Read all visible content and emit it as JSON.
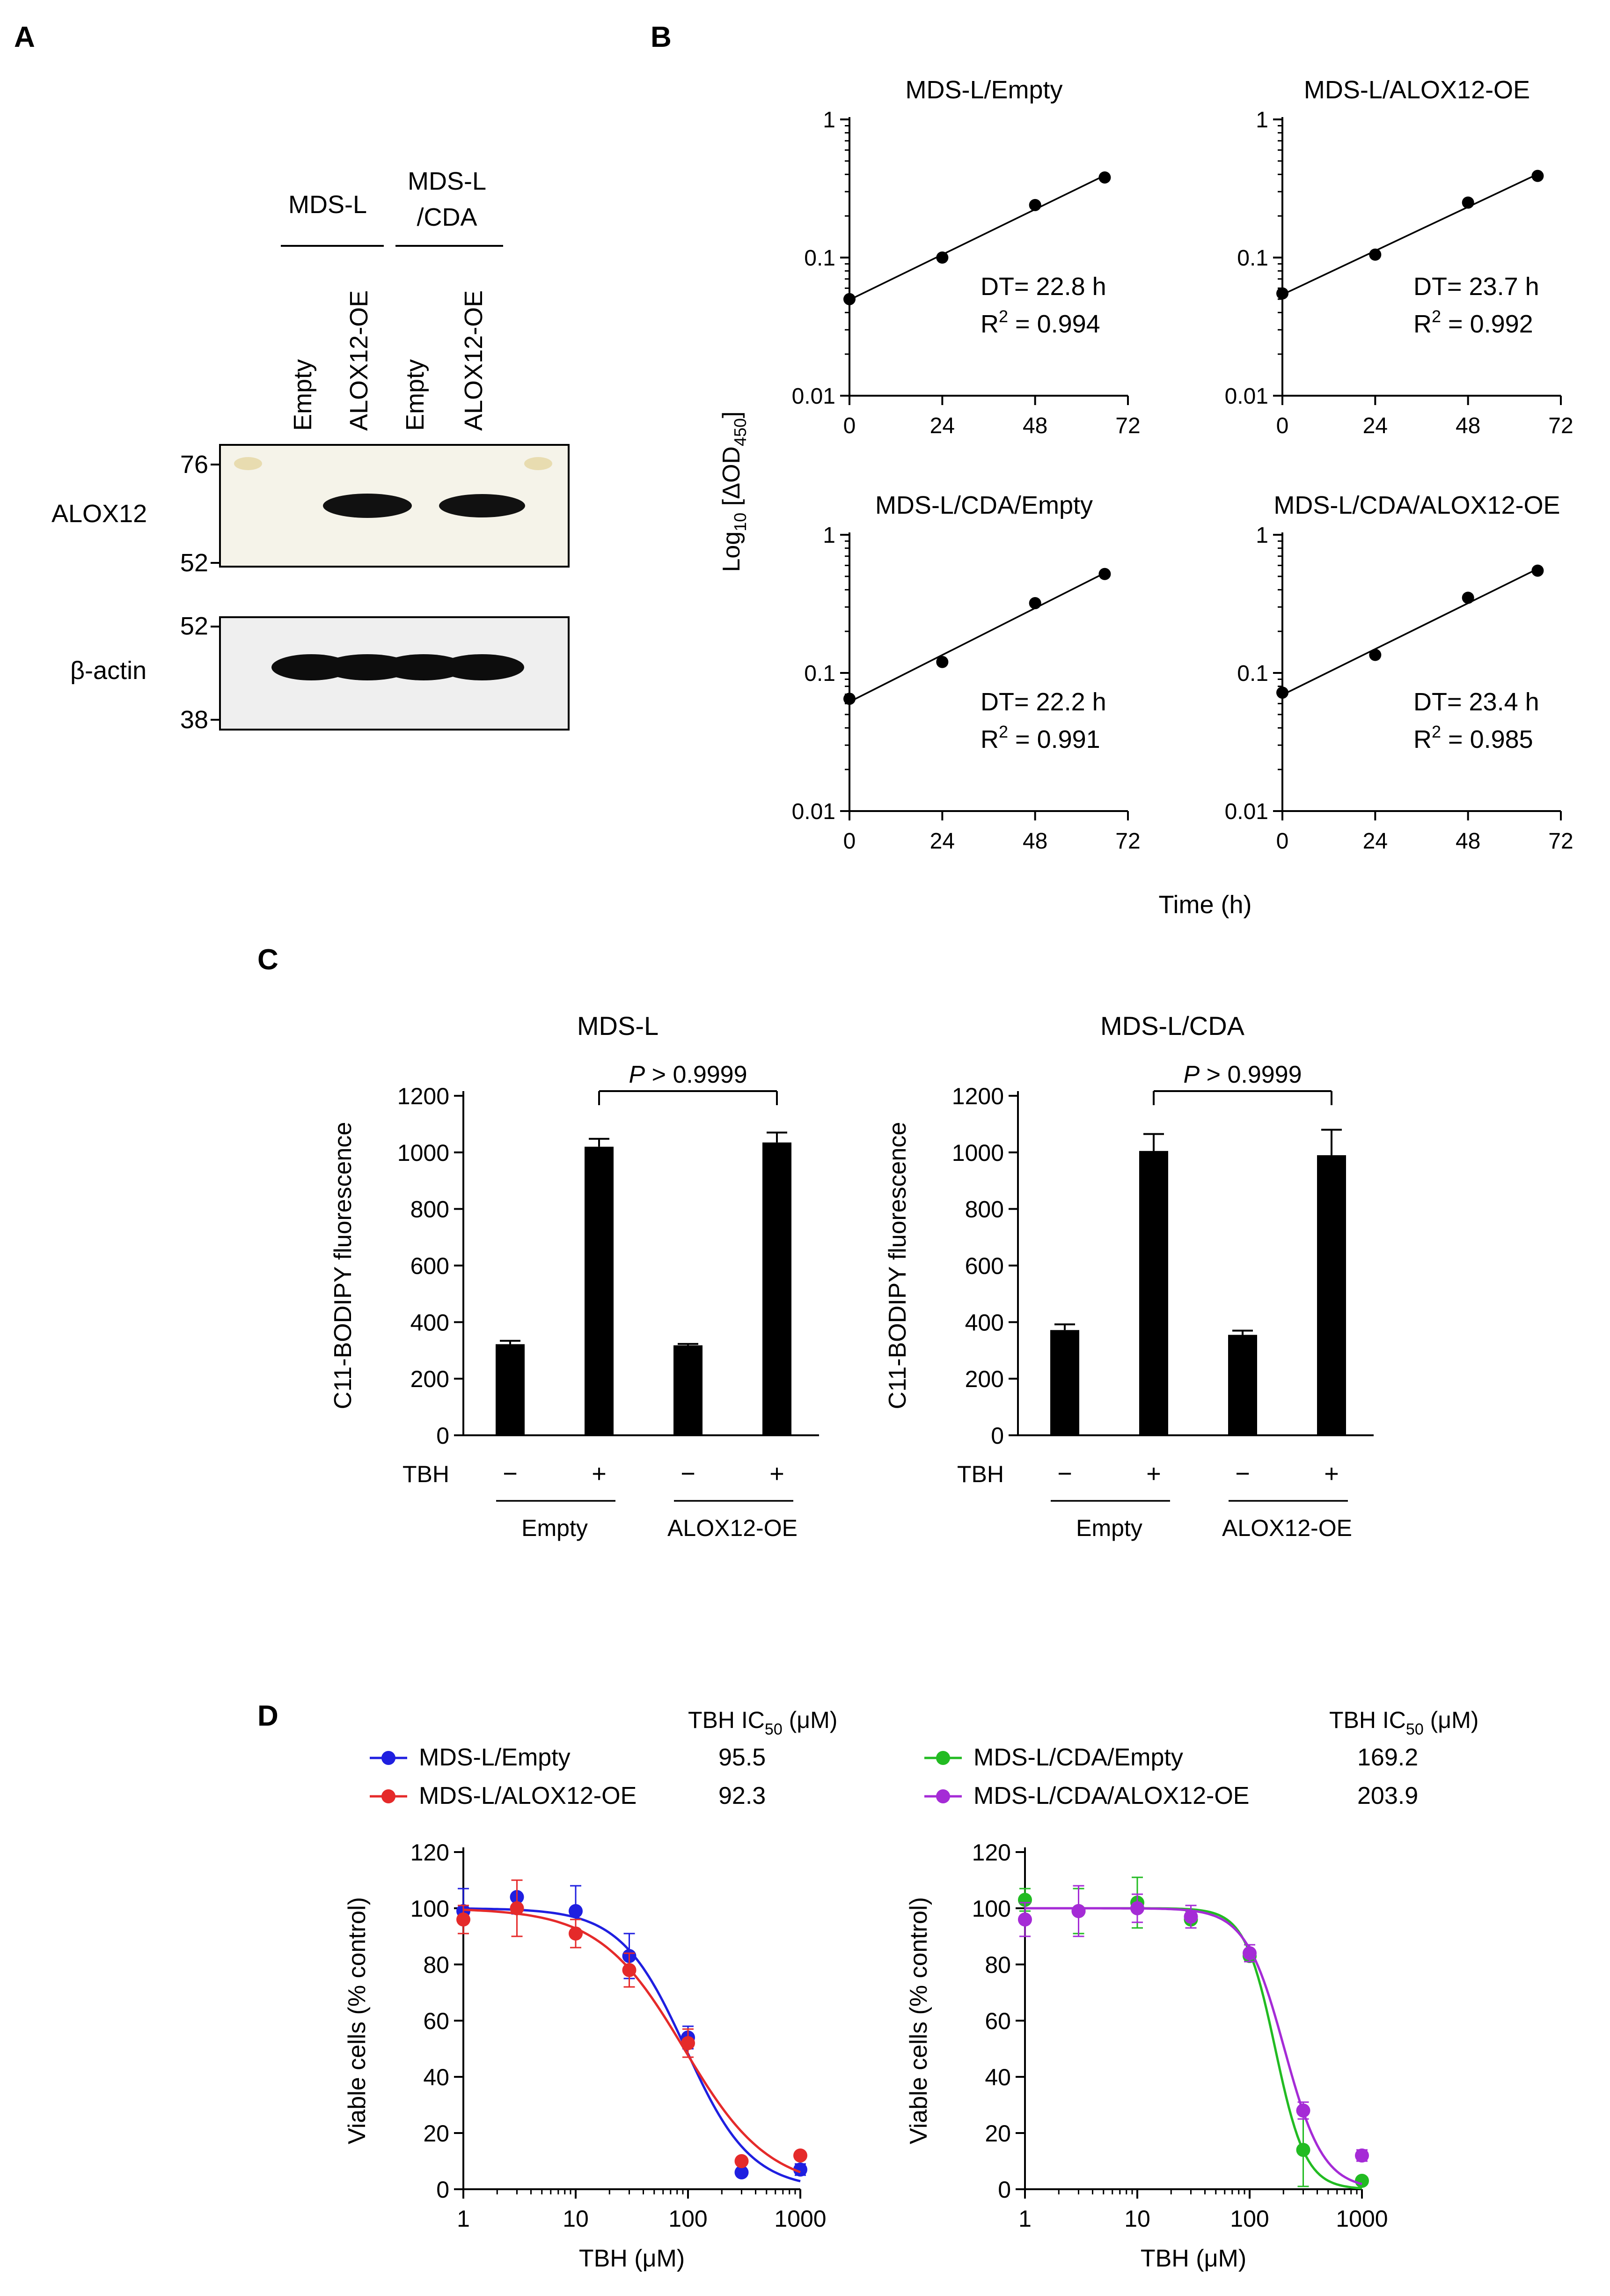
{
  "panel_labels": {
    "a": "A",
    "b": "B",
    "c": "C",
    "d": "D"
  },
  "colors": {
    "empty": "#1f1fe0",
    "alox": "#e52a2a",
    "cda_empty": "#22bb22",
    "cda_alox": "#a52bd6"
  },
  "western": {
    "groups": [
      "MDS-L",
      "MDS-L",
      "/CDA"
    ],
    "lanes": [
      "Empty",
      "ALOX12-OE",
      "Empty",
      "ALOX12-OE"
    ],
    "alox12_label": "ALOX12",
    "actin_label": "β-actin",
    "mw_top": [
      "76",
      "52"
    ],
    "mw_bottom": [
      "52",
      "38"
    ]
  },
  "panel_b": {
    "ylabel_main": "Log",
    "ylabel_sub": "10",
    "ylabel_bracket": " [ΔOD",
    "ylabel_sub2": "450",
    "ylabel_close": "]",
    "xlabel": "Time (h)",
    "y_ticks": [
      "1",
      "0.1",
      "0.01"
    ],
    "x_ticks": [
      "0",
      "24",
      "48",
      "72"
    ],
    "r2_prefix": "R",
    "r2_sup": "2"
  },
  "panel_c": {
    "ylabel": "C11-BODIPY fluorescence",
    "y_ticks": [
      "0",
      "200",
      "400",
      "600",
      "800",
      "1000",
      "1200"
    ],
    "tbh_label": "TBH",
    "minus": "−",
    "plus": "+",
    "group_labels": [
      "Empty",
      "ALOX12-OE"
    ],
    "p_italic": "P",
    "p_rest": " > 0.9999"
  },
  "panel_d": {
    "ylabel": "Viable cells (% control)",
    "xlabel": "TBH (μM)",
    "y_ticks": [
      "0",
      "20",
      "40",
      "60",
      "80",
      "100",
      "120"
    ],
    "x_ticks": [
      "1",
      "10",
      "100",
      "1000"
    ],
    "ic50_title_a": "TBH IC",
    "ic50_title_sub": "50",
    "ic50_title_b": " (μM)"
  },
  "chart_data": [
    {
      "type": "scatter",
      "title": "MDS-L/Empty",
      "x": [
        0,
        24,
        48,
        66
      ],
      "y": [
        0.05,
        0.1,
        0.24,
        0.38
      ],
      "xlim": [
        0,
        72
      ],
      "ylim": [
        0.01,
        1
      ],
      "yscale": "log",
      "dt": "DT= 22.8 h",
      "r2": " = 0.994",
      "fit": "exponential"
    },
    {
      "type": "scatter",
      "title": "MDS-L/ALOX12-OE",
      "x": [
        0,
        24,
        48,
        66
      ],
      "y": [
        0.055,
        0.105,
        0.25,
        0.39
      ],
      "xlim": [
        0,
        72
      ],
      "ylim": [
        0.01,
        1
      ],
      "yscale": "log",
      "dt": "DT= 23.7 h",
      "r2": " = 0.992",
      "fit": "exponential"
    },
    {
      "type": "scatter",
      "title": "MDS-L/CDA/Empty",
      "x": [
        0,
        24,
        48,
        66
      ],
      "y": [
        0.065,
        0.12,
        0.32,
        0.52
      ],
      "xlim": [
        0,
        72
      ],
      "ylim": [
        0.01,
        1
      ],
      "yscale": "log",
      "dt": "DT= 22.2 h",
      "r2": " = 0.991",
      "fit": "exponential"
    },
    {
      "type": "scatter",
      "title": "MDS-L/CDA/ALOX12-OE",
      "x": [
        0,
        24,
        48,
        66
      ],
      "y": [
        0.072,
        0.135,
        0.35,
        0.55
      ],
      "xlim": [
        0,
        72
      ],
      "ylim": [
        0.01,
        1
      ],
      "yscale": "log",
      "dt": "DT= 23.4 h",
      "r2": " = 0.985",
      "fit": "exponential"
    },
    {
      "type": "bar",
      "title": "MDS-L",
      "categories": [
        "Empty −",
        "Empty +",
        "ALOX12-OE −",
        "ALOX12-OE +"
      ],
      "values": [
        322,
        1020,
        318,
        1035
      ],
      "errors": [
        12,
        28,
        5,
        35
      ],
      "ylim": [
        0,
        1200
      ]
    },
    {
      "type": "bar",
      "title": "MDS-L/CDA",
      "categories": [
        "Empty −",
        "Empty +",
        "ALOX12-OE −",
        "ALOX12-OE +"
      ],
      "values": [
        372,
        1005,
        355,
        990
      ],
      "errors": [
        20,
        60,
        15,
        90
      ],
      "ylim": [
        0,
        1200
      ]
    },
    {
      "type": "scatter",
      "xscale": "log",
      "xlim": [
        1,
        1000
      ],
      "ylim": [
        0,
        120
      ],
      "series": [
        {
          "name": "MDS-L/Empty",
          "ic50": "95.5",
          "x": [
            1,
            3,
            10,
            30,
            100,
            300,
            1000
          ],
          "y": [
            99,
            104,
            99,
            83,
            54,
            6,
            7
          ],
          "err": [
            8,
            6,
            9,
            8,
            4,
            1,
            2
          ]
        },
        {
          "name": "MDS-L/ALOX12-OE",
          "ic50": "92.3",
          "x": [
            1,
            3,
            10,
            30,
            100,
            300,
            1000
          ],
          "y": [
            96,
            100,
            91,
            78,
            52,
            10,
            12
          ],
          "err": [
            5,
            10,
            5,
            6,
            5,
            1,
            1
          ]
        }
      ]
    },
    {
      "type": "scatter",
      "xscale": "log",
      "xlim": [
        1,
        1000
      ],
      "ylim": [
        0,
        120
      ],
      "series": [
        {
          "name": "MDS-L/CDA/Empty",
          "ic50": "169.2",
          "x": [
            1,
            3,
            10,
            30,
            100,
            300,
            1000
          ],
          "y": [
            103,
            99,
            102,
            96,
            83,
            14,
            3
          ],
          "err": [
            4,
            8,
            9,
            3,
            2,
            13,
            1
          ]
        },
        {
          "name": "MDS-L/CDA/ALOX12-OE",
          "ic50": "203.9",
          "x": [
            1,
            3,
            10,
            30,
            100,
            300,
            1000
          ],
          "y": [
            96,
            99,
            100,
            97,
            84,
            28,
            12
          ],
          "err": [
            6,
            9,
            5,
            4,
            3,
            3,
            2
          ]
        }
      ]
    }
  ]
}
